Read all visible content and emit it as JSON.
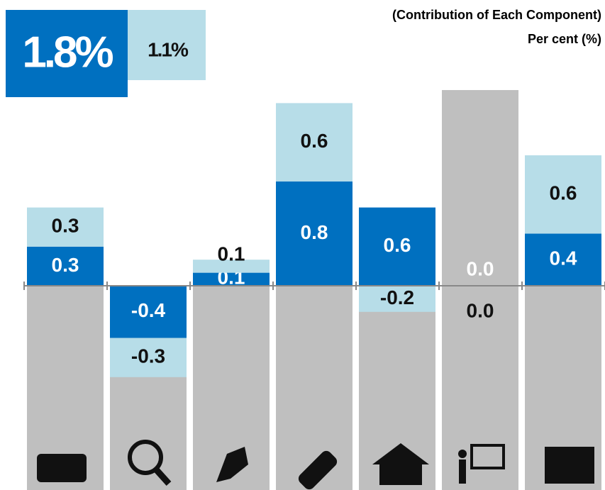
{
  "chart_data": {
    "type": "bar",
    "stacked": true,
    "subtitle": "(Contribution of Each Component)",
    "axis_label": "Per cent (%)",
    "categories": [
      null,
      null,
      null,
      null,
      null,
      null,
      null
    ],
    "series": [
      {
        "name": "1.8%",
        "color": "#0070c0",
        "values": [
          0.3,
          -0.4,
          0.1,
          0.8,
          0.6,
          0.0,
          0.4
        ],
        "value_labels": [
          "0.3",
          "-0.4",
          "0.1",
          "0.8",
          "0.6",
          "0.0",
          "0.4"
        ]
      },
      {
        "name": "1.1%",
        "color": "#b7dde8",
        "values": [
          0.3,
          -0.3,
          0.1,
          0.6,
          -0.2,
          0.0,
          0.6
        ],
        "value_labels": [
          "0.3",
          "-0.3",
          "0.1",
          "0.6",
          "-0.2",
          "0.0",
          "0.6"
        ]
      }
    ],
    "ylim": [
      -1.5,
      1.5
    ]
  }
}
